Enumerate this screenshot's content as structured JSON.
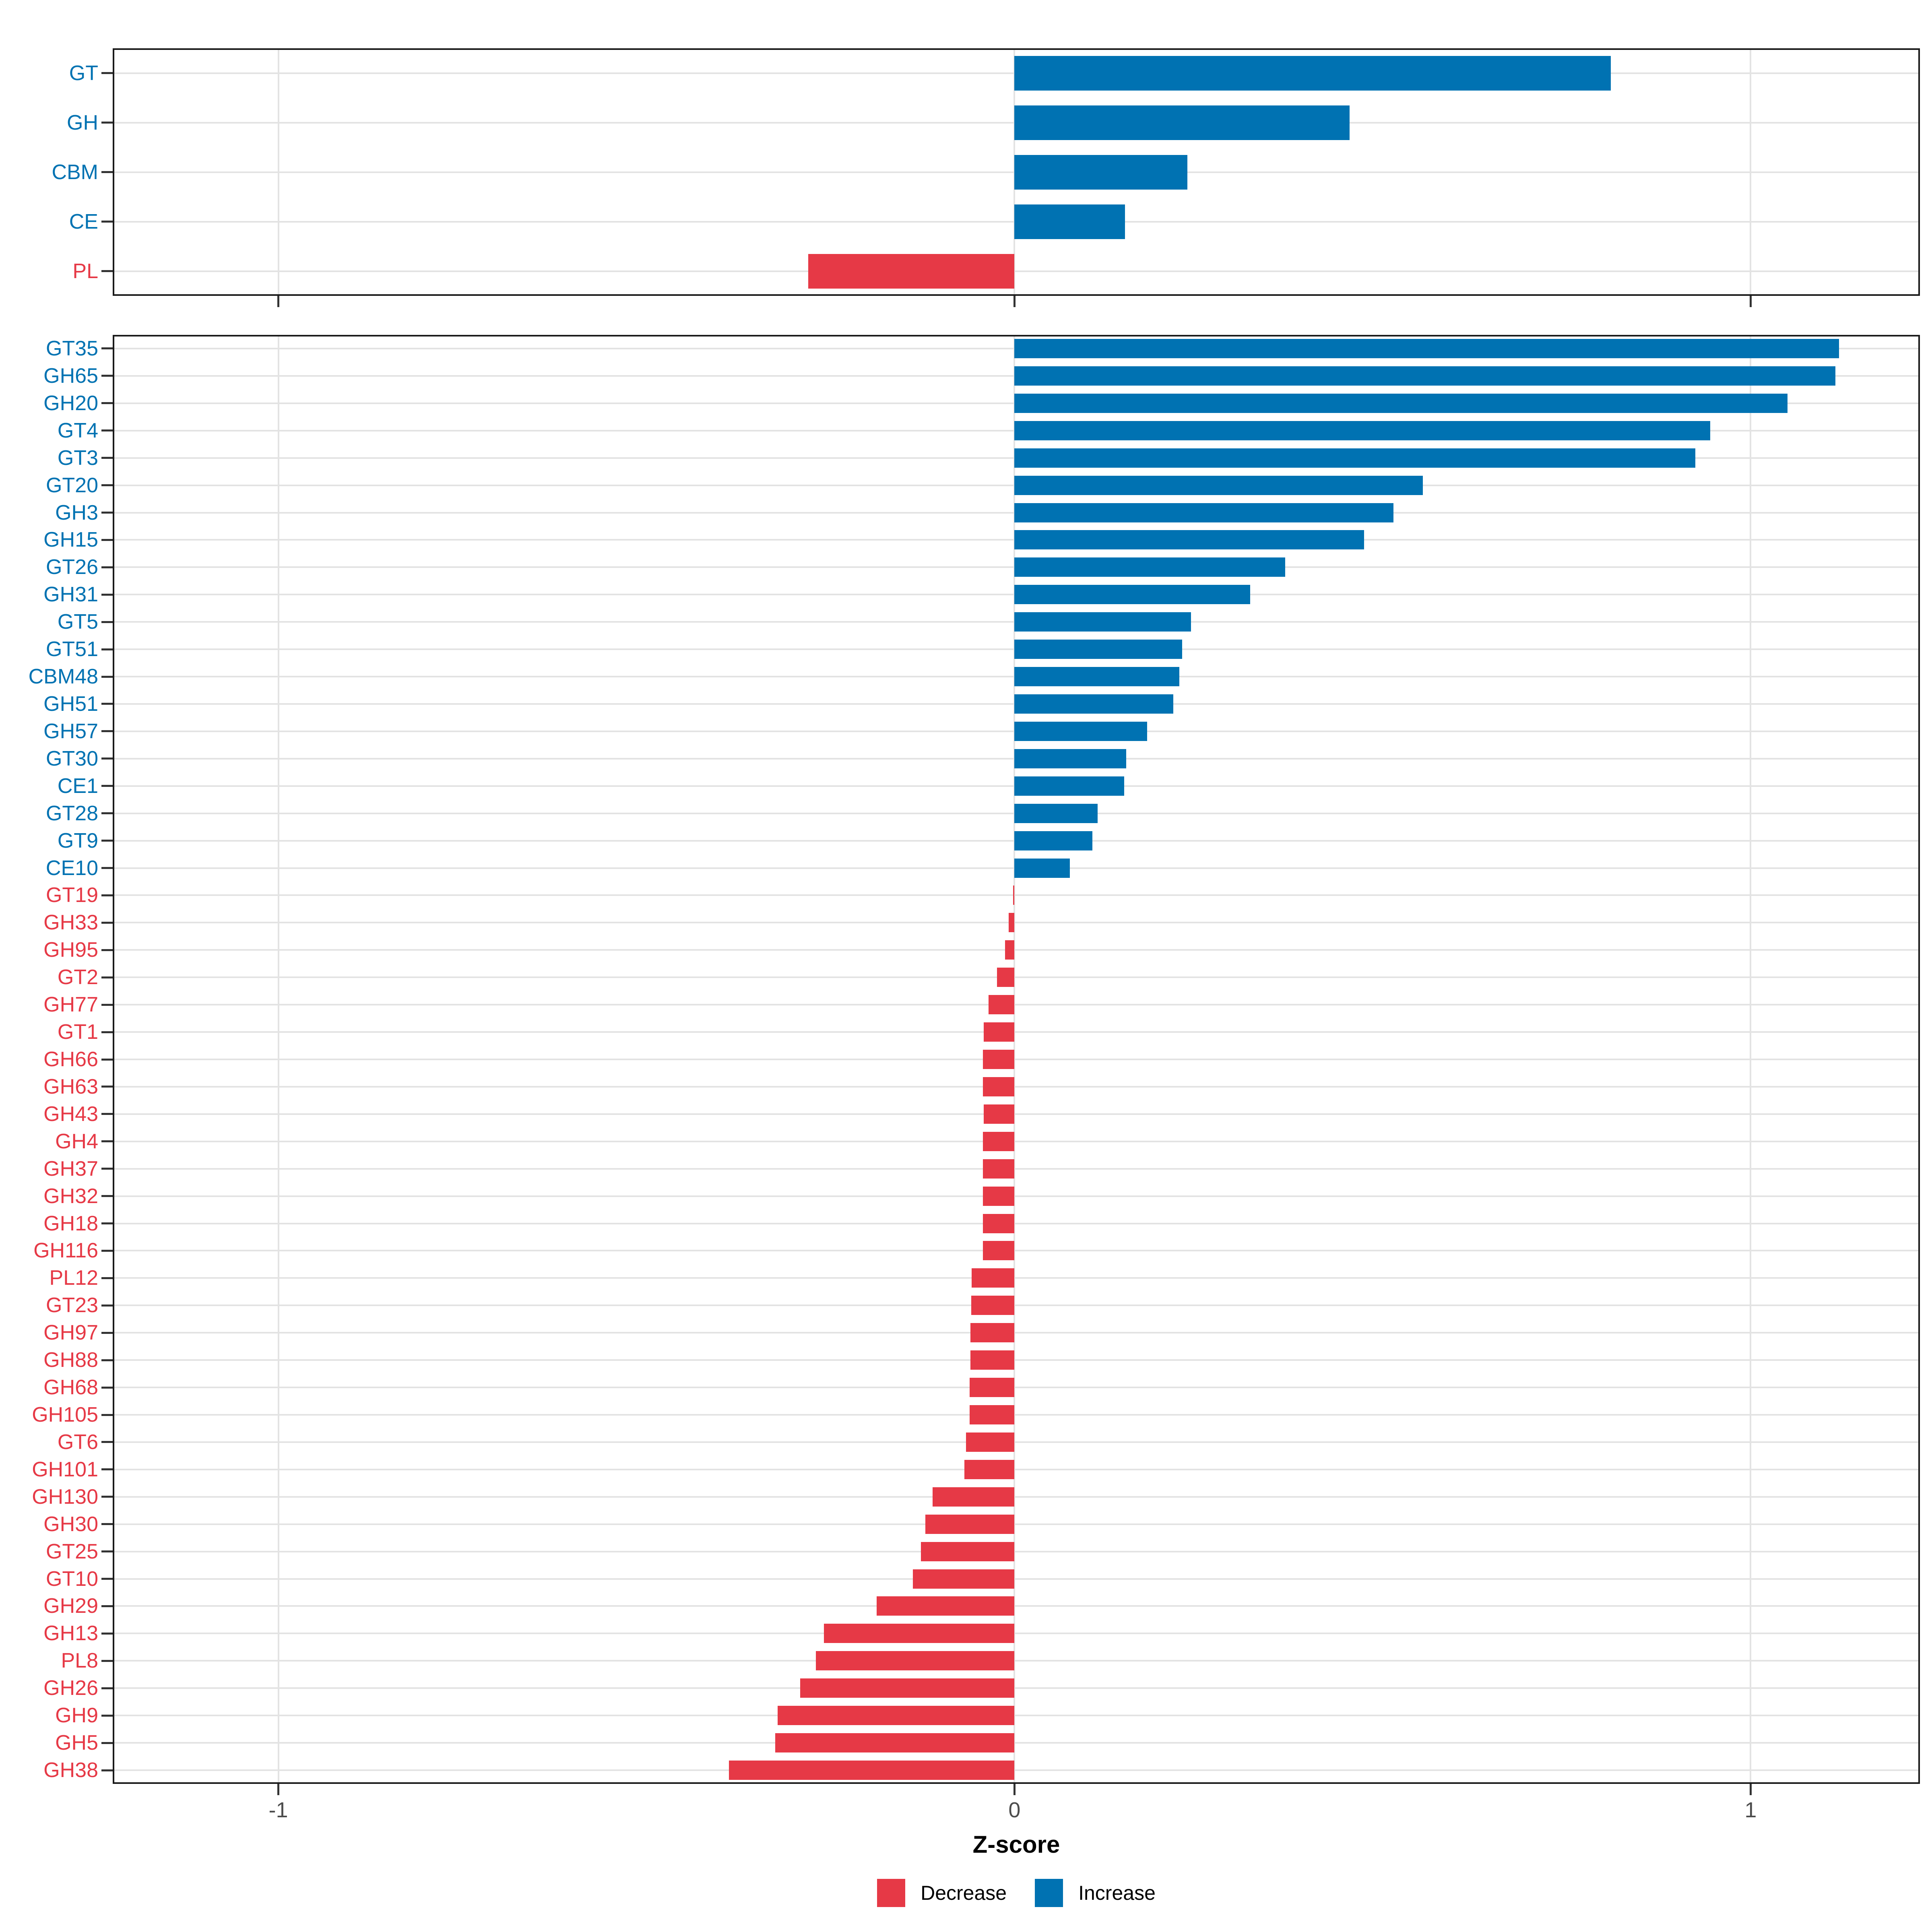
{
  "figure": {
    "xlabel": "Z-score",
    "x_ticks": [
      -1,
      0,
      1
    ],
    "x_tick_labels": [
      "-1",
      "0",
      "1"
    ],
    "axis_range": {
      "min": -1.225,
      "max": 1.23
    },
    "colors": {
      "increase": "#0072B2",
      "decrease": "#E63946",
      "grid": "#E3E3E3",
      "axis_text": "#4D4D4D",
      "panel_border": "#1A1A1A",
      "tick": "#333333"
    },
    "legend": [
      {
        "label": "Decrease",
        "color_key": "decrease"
      },
      {
        "label": "Increase",
        "color_key": "increase"
      }
    ]
  },
  "chart_data": [
    {
      "type": "bar",
      "orientation": "horizontal",
      "panel": "top",
      "title": "",
      "xlabel": "Z-score",
      "ylabel": "",
      "xlim": [
        -1.225,
        1.23
      ],
      "grid": true,
      "categories": [
        "GT",
        "GH",
        "CBM",
        "CE",
        "PL"
      ],
      "values": [
        0.81,
        0.455,
        0.235,
        0.15,
        -0.28
      ]
    },
    {
      "type": "bar",
      "orientation": "horizontal",
      "panel": "bottom",
      "title": "",
      "xlabel": "Z-score",
      "ylabel": "",
      "xlim": [
        -1.225,
        1.23
      ],
      "grid": true,
      "categories": [
        "GT35",
        "GH65",
        "GH20",
        "GT4",
        "GT3",
        "GT20",
        "GH3",
        "GH15",
        "GT26",
        "GH31",
        "GT5",
        "GT51",
        "CBM48",
        "GH51",
        "GH57",
        "GT30",
        "CE1",
        "GT28",
        "GT9",
        "CE10",
        "GT19",
        "GH33",
        "GH95",
        "GT2",
        "GH77",
        "GT1",
        "GH66",
        "GH63",
        "GH43",
        "GH4",
        "GH37",
        "GH32",
        "GH18",
        "GH116",
        "PL12",
        "GT23",
        "GH97",
        "GH88",
        "GH68",
        "GH105",
        "GT6",
        "GH101",
        "GH130",
        "GH30",
        "GT25",
        "GT10",
        "GH29",
        "GH13",
        "PL8",
        "GH26",
        "GH9",
        "GH5",
        "GH38"
      ],
      "values": [
        1.12,
        1.115,
        1.05,
        0.945,
        0.925,
        0.555,
        0.515,
        0.475,
        0.368,
        0.32,
        0.24,
        0.228,
        0.224,
        0.216,
        0.18,
        0.152,
        0.149,
        0.113,
        0.106,
        0.075,
        -0.002,
        -0.008,
        -0.013,
        -0.024,
        -0.035,
        -0.042,
        -0.043,
        -0.043,
        -0.042,
        -0.043,
        -0.043,
        -0.043,
        -0.043,
        -0.043,
        -0.058,
        -0.059,
        -0.06,
        -0.06,
        -0.061,
        -0.061,
        -0.066,
        -0.068,
        -0.111,
        -0.121,
        -0.127,
        -0.138,
        -0.187,
        -0.259,
        -0.27,
        -0.291,
        -0.322,
        -0.325,
        -0.388
      ]
    }
  ]
}
